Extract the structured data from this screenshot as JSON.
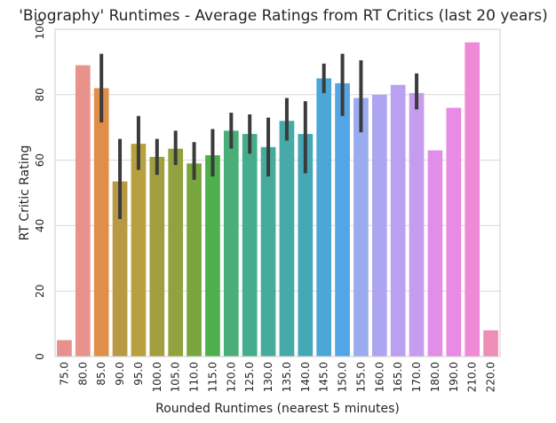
{
  "chart_data": {
    "type": "bar",
    "title": "'Biography' Runtimes - Average Ratings from RT Critics (last 20 years)",
    "xlabel": "Rounded Runtimes (nearest 5 minutes)",
    "ylabel": "RT Critic Rating",
    "ylim": [
      0,
      100
    ],
    "yticks": [
      "0",
      "20",
      "40",
      "60",
      "80",
      "100"
    ],
    "grid": "horizontal",
    "categories": [
      "75.0",
      "80.0",
      "85.0",
      "90.0",
      "95.0",
      "100.0",
      "105.0",
      "110.0",
      "115.0",
      "120.0",
      "125.0",
      "130.0",
      "135.0",
      "140.0",
      "145.0",
      "150.0",
      "155.0",
      "160.0",
      "165.0",
      "170.0",
      "180.0",
      "190.0",
      "210.0",
      "220.0"
    ],
    "values": [
      5,
      89,
      82,
      53.5,
      65,
      61,
      63.5,
      59,
      61.5,
      69,
      68,
      64,
      72,
      68,
      85,
      83.5,
      79,
      80,
      83,
      80.5,
      63,
      76,
      96,
      8
    ],
    "error_bars": [
      null,
      null,
      [
        71.5,
        92.5
      ],
      [
        42,
        66.5
      ],
      [
        57,
        73.5
      ],
      [
        55.5,
        66.5
      ],
      [
        58.5,
        69
      ],
      [
        54,
        65.5
      ],
      [
        55,
        69.5
      ],
      [
        63.5,
        74.5
      ],
      [
        62,
        74
      ],
      [
        55,
        73
      ],
      [
        66,
        79
      ],
      [
        56,
        78
      ],
      [
        80.5,
        89.5
      ],
      [
        73.5,
        92.5
      ],
      [
        68.5,
        90.5
      ],
      [
        null,
        null
      ],
      [
        null,
        null
      ],
      [
        75.5,
        86.5
      ],
      null,
      null,
      null,
      null
    ],
    "colors": [
      "#e8908e",
      "#e8928c",
      "#df8f4a",
      "#b99a44",
      "#b8a040",
      "#a09e3f",
      "#92a23f",
      "#7aa63f",
      "#4db04c",
      "#4aae79",
      "#45ad8c",
      "#47ab9b",
      "#45aaa8",
      "#44a8b7",
      "#4ca7d6",
      "#54a5e6",
      "#9aabf0",
      "#aea5f2",
      "#b9a0f1",
      "#c79bee",
      "#e28ee8",
      "#e98ae4",
      "#ef8ad8",
      "#ef8fb8"
    ]
  }
}
